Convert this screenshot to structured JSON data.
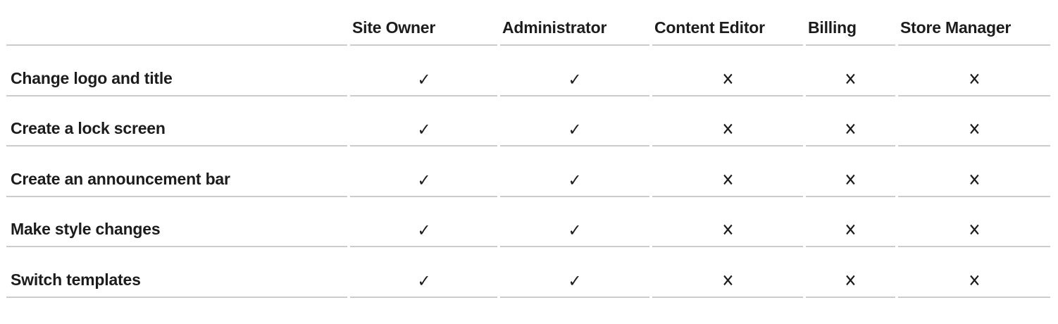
{
  "colors": {
    "text": "#1c1c1c",
    "divider": "#cccccc",
    "background": "#ffffff"
  },
  "table": {
    "columns": [
      "Site Owner",
      "Administrator",
      "Content Editor",
      "Billing",
      "Store Manager"
    ],
    "marks": {
      "allowed": "✓",
      "denied": "✕"
    },
    "rows": [
      {
        "feature": "Change logo and title",
        "cells": [
          "✓",
          "✓",
          "✕",
          "✕",
          "✕"
        ]
      },
      {
        "feature": "Create a lock screen",
        "cells": [
          "✓",
          "✓",
          "✕",
          "✕",
          "✕"
        ]
      },
      {
        "feature": "Create an announcement bar",
        "cells": [
          "✓",
          "✓",
          "✕",
          "✕",
          "✕"
        ]
      },
      {
        "feature": "Make style changes",
        "cells": [
          "✓",
          "✓",
          "✕",
          "✕",
          "✕"
        ]
      },
      {
        "feature": "Switch templates",
        "cells": [
          "✓",
          "✓",
          "✕",
          "✕",
          "✕"
        ]
      }
    ]
  }
}
